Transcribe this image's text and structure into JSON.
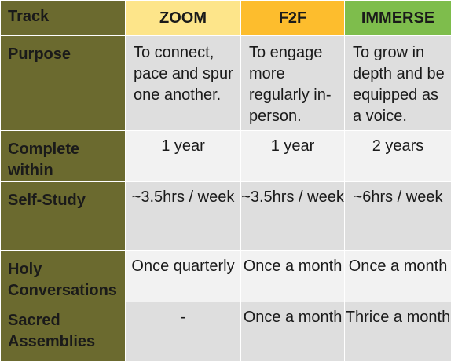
{
  "header": {
    "track_label": "Track",
    "columns": [
      "ZOOM",
      "F2F",
      "IMMERSE"
    ]
  },
  "colors": {
    "row_header_bg": "#6b6a2f",
    "zoom_header": "#fde58a",
    "f2f_header": "#fdbd2d",
    "immerse_header": "#7ebd4c",
    "light_row": "#f2f2f2",
    "dark_row": "#dedede"
  },
  "rows": [
    {
      "label": "Purpose",
      "values": [
        "To connect, pace and spur one another.",
        "To engage more regularly in-person.",
        "To grow in depth and be equipped as a voice."
      ]
    },
    {
      "label": "Complete within",
      "values": [
        "1 year",
        "1 year",
        "2 years"
      ]
    },
    {
      "label": "Self-Study",
      "values": [
        "~3.5hrs / week",
        "~3.5hrs / week",
        "~6hrs / week"
      ]
    },
    {
      "label": "Holy Conversations",
      "values": [
        "Once quarterly",
        "Once a month",
        "Once a month"
      ]
    },
    {
      "label": "Sacred Assemblies",
      "values": [
        "-",
        "Once a month",
        "Thrice a month"
      ]
    }
  ]
}
